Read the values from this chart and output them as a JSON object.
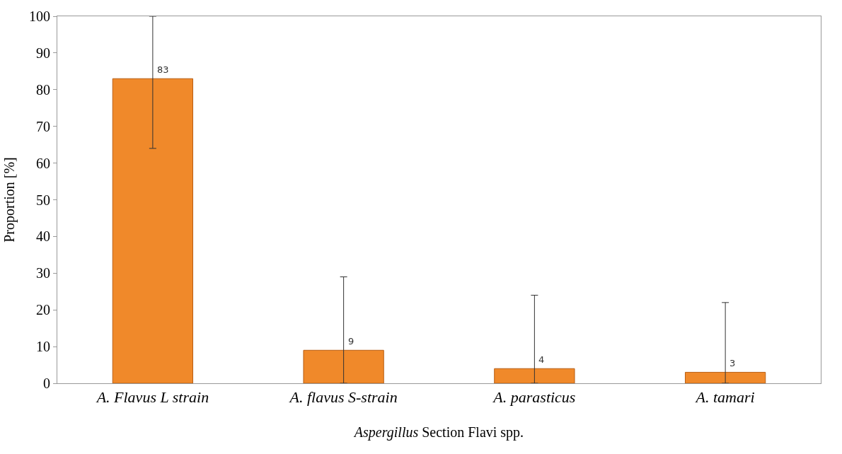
{
  "chart_data": {
    "type": "bar",
    "xlabel": "Aspergillus Section Flavi spp.",
    "ylabel": "Proportion [%]",
    "categories": [
      "A. Flavus L strain",
      "A. flavus S-strain",
      "A. parasticus",
      "A. tamari"
    ],
    "values": [
      83,
      9,
      4,
      3
    ],
    "errors": [
      [
        64,
        100
      ],
      [
        0,
        29
      ],
      [
        0,
        24
      ],
      [
        0,
        22
      ]
    ],
    "color": "#f0892a",
    "ylim": [
      0,
      100
    ],
    "yticks": [
      0,
      10,
      20,
      30,
      40,
      50,
      60,
      70,
      80,
      90,
      100
    ],
    "legend": false,
    "data_labels": true
  }
}
